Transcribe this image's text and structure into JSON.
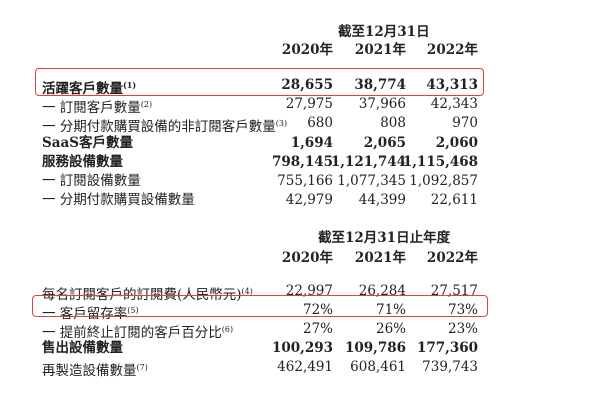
{
  "colors": {
    "highlight_box": "#e0403f"
  },
  "section1": {
    "header": "截至12月31日",
    "years": [
      "2020年",
      "2021年",
      "2022年"
    ],
    "rows": [
      {
        "label": "活躍客戶數量",
        "note": "(1)",
        "values": [
          "28,655",
          "38,774",
          "43,313"
        ],
        "bold": true,
        "highlighted": true
      },
      {
        "label": "一 訂閱客戶數量",
        "note": "(2)",
        "values": [
          "27,975",
          "37,966",
          "42,343"
        ]
      },
      {
        "label": "一 分期付款購買設備的非訂閱客戶數量",
        "note": "(3)",
        "values": [
          "680",
          "808",
          "970"
        ]
      },
      {
        "label": "SaaS客戶數量",
        "note": "",
        "values": [
          "1,694",
          "2,065",
          "2,060"
        ],
        "bold": true
      },
      {
        "label": "服務設備數量",
        "note": "",
        "values": [
          "798,145",
          "1,121,744",
          "1,115,468"
        ],
        "bold": true
      },
      {
        "label": "一 訂閱設備數量",
        "note": "",
        "values": [
          "755,166",
          "1,077,345",
          "1,092,857"
        ]
      },
      {
        "label": "一 分期付款購買設備數量",
        "note": "",
        "values": [
          "42,979",
          "44,399",
          "22,611"
        ]
      }
    ]
  },
  "section2": {
    "header": "截至12月31日止年度",
    "years": [
      "2020年",
      "2021年",
      "2022年"
    ],
    "rows": [
      {
        "label": "每名訂閱客戶的訂閱費(人民幣元)",
        "note": "(4)",
        "values": [
          "22,997",
          "26,284",
          "27,517"
        ]
      },
      {
        "label": "一 客戶留存率",
        "note": "(5)",
        "values": [
          "72%",
          "71%",
          "73%"
        ],
        "highlighted": true
      },
      {
        "label": "一 提前終止訂閱的客戶百分比",
        "note": "(6)",
        "values": [
          "27%",
          "26%",
          "23%"
        ]
      },
      {
        "label": "售出設備數量",
        "note": "",
        "values": [
          "100,293",
          "109,786",
          "177,360"
        ],
        "bold": true
      },
      {
        "label": "再製造設備數量",
        "note": "(7)",
        "values": [
          "462,491",
          "608,461",
          "739,743"
        ]
      }
    ]
  }
}
